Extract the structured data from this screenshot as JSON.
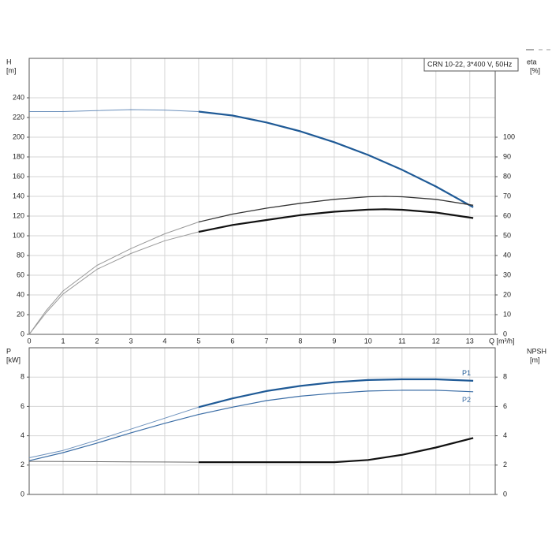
{
  "chart_data": [
    {
      "type": "line",
      "title": "CRN 10-22, 3*400 V, 50Hz",
      "ylabel": "H",
      "yunit": "[m]",
      "y2label": "eta",
      "y2unit": "[%]",
      "xlabel": "Q [m³/h]",
      "xlim": [
        0,
        13.75
      ],
      "xticks": [
        0,
        1,
        2,
        3,
        4,
        5,
        6,
        7,
        8,
        9,
        10,
        11,
        12,
        13
      ],
      "ylim": [
        0,
        280
      ],
      "yticks": [
        0,
        20,
        40,
        60,
        80,
        100,
        120,
        140,
        160,
        180,
        200,
        220,
        240
      ],
      "y2lim": [
        0,
        140
      ],
      "y2ticks": [
        0,
        10,
        20,
        30,
        40,
        50,
        60,
        70,
        80,
        90,
        100
      ],
      "grid": true,
      "series": [
        {
          "color": "#6a8fbb",
          "width": 1,
          "x": [
            0,
            1,
            2,
            3,
            4,
            5
          ],
          "values": [
            226,
            226,
            227,
            228,
            227.5,
            226
          ]
        },
        {
          "color": "#1f5a96",
          "width": 2.2,
          "x": [
            5,
            6,
            7,
            8,
            9,
            10,
            11,
            12,
            13.1
          ],
          "values": [
            226,
            222,
            215,
            206,
            195,
            182,
            167,
            150,
            129
          ]
        },
        {
          "color": "#999999",
          "width": 1,
          "axis": "y2",
          "x": [
            0,
            0.25,
            0.5,
            1,
            2,
            3,
            4,
            5
          ],
          "values": [
            0,
            6,
            12,
            22,
            35,
            43.5,
            51,
            57
          ]
        },
        {
          "color": "#333333",
          "width": 1.3,
          "axis": "y2",
          "x": [
            5,
            6,
            7,
            8,
            9,
            10,
            10.5,
            11,
            12,
            13.1
          ],
          "values": [
            57,
            61,
            64,
            66.5,
            68.5,
            69.8,
            70,
            69.8,
            68.5,
            65.5
          ]
        },
        {
          "color": "#999999",
          "width": 1,
          "axis": "y2",
          "x": [
            0,
            0.25,
            0.5,
            1,
            2,
            3,
            4,
            5
          ],
          "values": [
            0,
            5.5,
            11,
            20.5,
            33,
            41,
            47.5,
            52
          ]
        },
        {
          "color": "#111111",
          "width": 2.2,
          "axis": "y2",
          "x": [
            5,
            6,
            7,
            8,
            9,
            10,
            10.5,
            11,
            12,
            13.1
          ],
          "values": [
            52,
            55.5,
            58,
            60.5,
            62.2,
            63.3,
            63.5,
            63.2,
            61.8,
            59
          ]
        }
      ]
    },
    {
      "type": "line",
      "ylabel": "P",
      "yunit": "[kW]",
      "y2label": "NPSH",
      "y2unit": "[m]",
      "xlim": [
        0,
        13.75
      ],
      "xticks": [
        0,
        1,
        2,
        3,
        4,
        5,
        6,
        7,
        8,
        9,
        10,
        11,
        12,
        13
      ],
      "ylim": [
        0,
        10
      ],
      "yticks": [
        0,
        2,
        4,
        6,
        8
      ],
      "y2lim": [
        0,
        10
      ],
      "y2ticks": [
        0,
        2,
        4,
        6,
        8
      ],
      "grid": true,
      "series": [
        {
          "color": "#6a8fbb",
          "width": 1,
          "x": [
            0,
            1,
            2,
            3,
            4,
            5
          ],
          "values": [
            2.5,
            3.0,
            3.7,
            4.45,
            5.2,
            5.95
          ]
        },
        {
          "color": "#1f5a96",
          "width": 2.2,
          "label": "P1",
          "x": [
            5,
            6,
            7,
            8,
            9,
            10,
            11,
            12,
            13.1
          ],
          "values": [
            5.95,
            6.55,
            7.05,
            7.4,
            7.65,
            7.8,
            7.85,
            7.85,
            7.75
          ]
        },
        {
          "color": "#3c6ea6",
          "width": 1.2,
          "label": "P2",
          "x": [
            0,
            1,
            2,
            3,
            4,
            5,
            6,
            7,
            8,
            9,
            10,
            11,
            12,
            13.1
          ],
          "values": [
            2.3,
            2.85,
            3.5,
            4.2,
            4.85,
            5.45,
            5.95,
            6.4,
            6.7,
            6.9,
            7.05,
            7.1,
            7.1,
            7.0
          ]
        },
        {
          "color": "#666666",
          "width": 1,
          "axis": "y2",
          "x": [
            0,
            1,
            2,
            3,
            4,
            5
          ],
          "values": [
            2.25,
            2.24,
            2.23,
            2.22,
            2.21,
            2.2
          ]
        },
        {
          "color": "#111111",
          "width": 2.2,
          "axis": "y2",
          "x": [
            5,
            6,
            7,
            8,
            9,
            10,
            11,
            12,
            13.1
          ],
          "values": [
            2.2,
            2.2,
            2.2,
            2.2,
            2.2,
            2.35,
            2.7,
            3.2,
            3.85
          ]
        }
      ]
    }
  ]
}
